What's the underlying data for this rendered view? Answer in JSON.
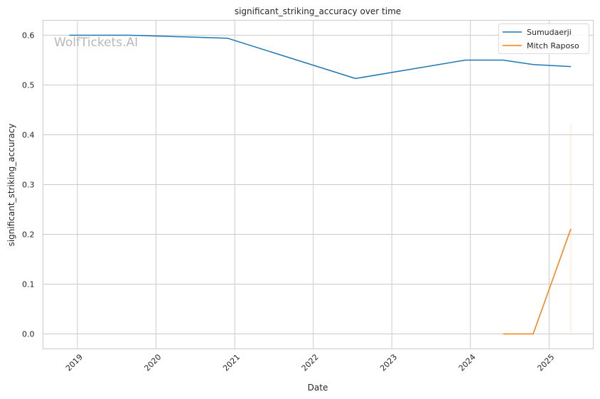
{
  "chart_data": {
    "type": "line",
    "title": "significant_striking_accuracy over time",
    "xlabel": "Date",
    "ylabel": "significant_striking_accuracy",
    "watermark": "WolfTickets.AI",
    "x_ticks": [
      "2019",
      "2020",
      "2021",
      "2022",
      "2023",
      "2024",
      "2025"
    ],
    "y_ticks": [
      "0.0",
      "0.1",
      "0.2",
      "0.3",
      "0.4",
      "0.5",
      "0.6"
    ],
    "xlim": [
      "2018-07-25",
      "2025-07-25"
    ],
    "ylim": [
      -0.03,
      0.63
    ],
    "grid": true,
    "legend_position": "top-right",
    "series": [
      {
        "name": "Sumudaerji",
        "color": "#1f77b4",
        "points": [
          {
            "x": "2018-11-24",
            "y": 0.6
          },
          {
            "x": "2019-09-01",
            "y": 0.6
          },
          {
            "x": "2020-11-28",
            "y": 0.594
          },
          {
            "x": "2022-07-16",
            "y": 0.513
          },
          {
            "x": "2023-12-09",
            "y": 0.55
          },
          {
            "x": "2024-06-01",
            "y": 0.55
          },
          {
            "x": "2024-10-19",
            "y": 0.541
          },
          {
            "x": "2025-04-12",
            "y": 0.537
          }
        ]
      },
      {
        "name": "Mitch Raposo",
        "color": "#ff7f0e",
        "points": [
          {
            "x": "2024-06-01",
            "y": 0.0
          },
          {
            "x": "2024-10-19",
            "y": 0.0
          },
          {
            "x": "2025-04-12",
            "y": 0.211
          }
        ],
        "band": {
          "x": "2025-04-12",
          "low": 0.0,
          "high": 0.422
        }
      }
    ]
  }
}
